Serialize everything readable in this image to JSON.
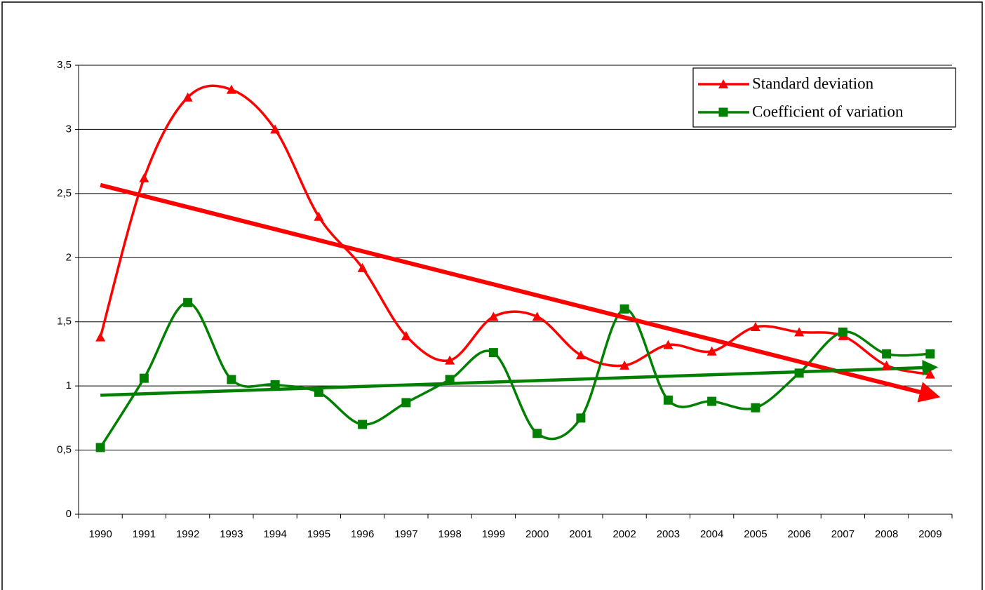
{
  "chart_data": {
    "type": "line",
    "categories": [
      "1990",
      "1991",
      "1992",
      "1993",
      "1994",
      "1995",
      "1996",
      "1997",
      "1998",
      "1999",
      "2000",
      "2001",
      "2002",
      "2003",
      "2004",
      "2005",
      "2006",
      "2007",
      "2008",
      "2009"
    ],
    "series": [
      {
        "name": "Standard deviation",
        "color": "#ff0000",
        "marker": "triangle",
        "trendline": true,
        "values": [
          1.38,
          2.62,
          3.25,
          3.31,
          3.0,
          2.32,
          1.92,
          1.39,
          1.2,
          1.54,
          1.54,
          1.24,
          1.16,
          1.32,
          1.27,
          1.46,
          1.42,
          1.39,
          1.16,
          1.09
        ]
      },
      {
        "name": "Coefficient of variation",
        "color": "#008000",
        "marker": "square",
        "trendline": true,
        "values": [
          0.52,
          1.06,
          1.65,
          1.05,
          1.01,
          0.95,
          0.7,
          0.87,
          1.05,
          1.26,
          0.63,
          0.75,
          1.6,
          0.89,
          0.88,
          0.83,
          1.1,
          1.42,
          1.25,
          1.25
        ]
      }
    ],
    "ylim": [
      0,
      3.5
    ],
    "yticks": [
      0,
      {
        "value": 0.5,
        "label": "0,5"
      },
      1,
      {
        "value": 1.5,
        "label": "1,5"
      },
      2,
      {
        "value": 2.5,
        "label": "2,5"
      },
      3,
      {
        "value": 3.5,
        "label": "3,5"
      }
    ],
    "grid": true,
    "smooth": true,
    "legend": "top-right"
  }
}
